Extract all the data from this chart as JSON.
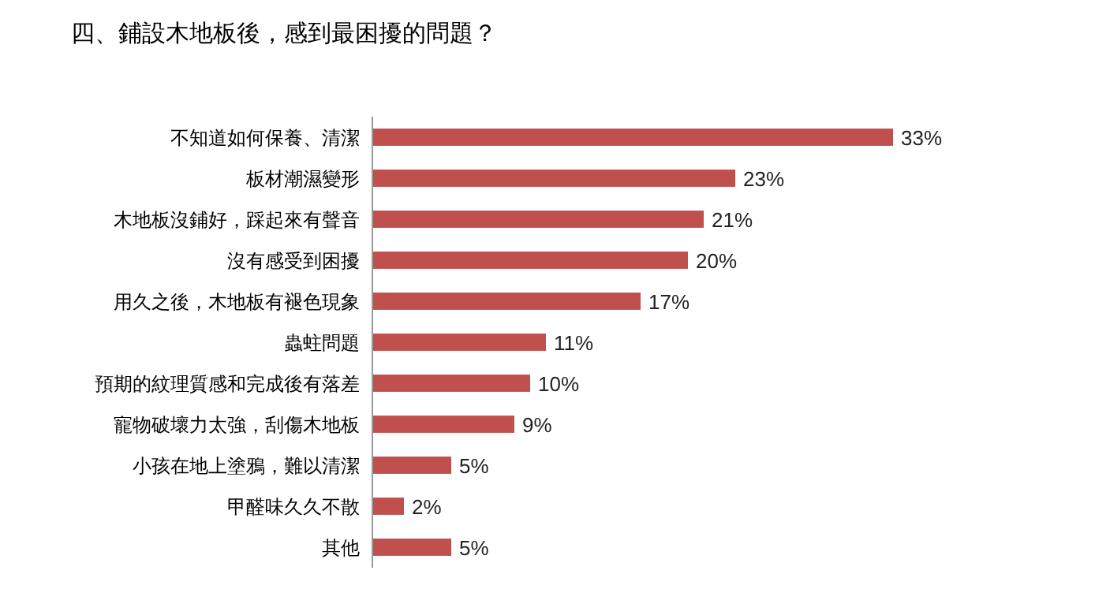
{
  "chart_data": {
    "type": "bar",
    "orientation": "horizontal",
    "title": "四、鋪設木地板後，感到最困擾的問題？",
    "categories": [
      "不知道如何保養、清潔",
      "板材潮濕變形",
      "木地板沒鋪好，踩起來有聲音",
      "沒有感受到困擾",
      "用久之後，木地板有褪色現象",
      "蟲蛀問題",
      "預期的紋理質感和完成後有落差",
      "寵物破壞力太強，刮傷木地板",
      "小孩在地上塗鴉，難以清潔",
      "甲醛味久久不散",
      "其他"
    ],
    "values": [
      33,
      23,
      21,
      20,
      17,
      11,
      10,
      9,
      5,
      2,
      5
    ],
    "value_labels": [
      "33%",
      "23%",
      "21%",
      "20%",
      "17%",
      "11%",
      "10%",
      "9%",
      "5%",
      "2%",
      "5%"
    ],
    "color": "#c0504d"
  }
}
